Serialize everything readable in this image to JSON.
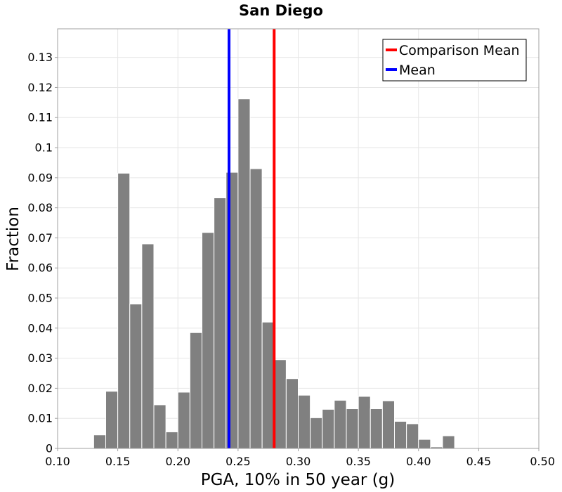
{
  "chart_data": {
    "type": "bar",
    "title": "San Diego",
    "xlabel": "PGA, 10% in 50 year (g)",
    "ylabel": "Fraction",
    "xlim": [
      0.1,
      0.5
    ],
    "ylim": [
      0,
      0.1395
    ],
    "grid": true,
    "x_ticks": [
      "0.10",
      "0.15",
      "0.20",
      "0.25",
      "0.30",
      "0.35",
      "0.40",
      "0.45",
      "0.50"
    ],
    "x_tick_values": [
      0.1,
      0.15,
      0.2,
      0.25,
      0.3,
      0.35,
      0.4,
      0.45,
      0.5
    ],
    "y_ticks": [
      "0",
      "0.01",
      "0.02",
      "0.03",
      "0.04",
      "0.05",
      "0.06",
      "0.07",
      "0.08",
      "0.09",
      "0.1",
      "0.11",
      "0.12",
      "0.13"
    ],
    "y_tick_values": [
      0,
      0.01,
      0.02,
      0.03,
      0.04,
      0.05,
      0.06,
      0.07,
      0.08,
      0.09,
      0.1,
      0.11,
      0.12,
      0.13
    ],
    "bin_width": 0.01,
    "bin_starts": [
      0.13,
      0.14,
      0.15,
      0.16,
      0.17,
      0.18,
      0.19,
      0.2,
      0.21,
      0.22,
      0.23,
      0.24,
      0.25,
      0.26,
      0.27,
      0.28,
      0.29,
      0.3,
      0.31,
      0.32,
      0.33,
      0.34,
      0.35,
      0.36,
      0.37,
      0.38,
      0.39,
      0.4,
      0.41,
      0.42
    ],
    "values": [
      0.0045,
      0.019,
      0.0915,
      0.048,
      0.068,
      0.0145,
      0.0055,
      0.0187,
      0.0385,
      0.0718,
      0.0833,
      0.0918,
      0.1162,
      0.093,
      0.042,
      0.0295,
      0.0232,
      0.0177,
      0.0102,
      0.013,
      0.016,
      0.0132,
      0.0173,
      0.0132,
      0.0158,
      0.009,
      0.0082,
      0.003,
      0.0005,
      0.0042
    ],
    "bar_color": "#808080",
    "vertical_lines": [
      {
        "name": "Comparison Mean",
        "x": 0.28,
        "color": "#ff0000"
      },
      {
        "name": "Mean",
        "x": 0.2425,
        "color": "#0000ff"
      }
    ],
    "legend": {
      "placement": "top-right",
      "entries": [
        {
          "label": "Comparison Mean",
          "color": "#ff0000"
        },
        {
          "label": "Mean",
          "color": "#0000ff"
        }
      ]
    }
  }
}
